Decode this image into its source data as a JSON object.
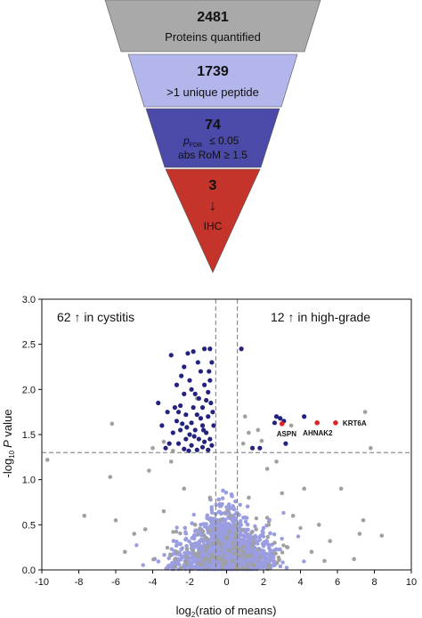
{
  "funnel": {
    "tiers": [
      {
        "count": "2481",
        "label": "Proteins quantified",
        "color": "#a9a9a9"
      },
      {
        "count": "1739",
        "label": ">1 unique peptide",
        "color": "#b3b6ea"
      },
      {
        "count": "74",
        "label_p": "p",
        "label_p_sub": "FDR",
        "label_p_rest": "≤ 0.05",
        "label_rom": "abs RoM ≥ 1.5",
        "color": "#4b4aa8"
      },
      {
        "count": "3",
        "arrow": "↓",
        "label": "IHC",
        "color": "#c4342b"
      }
    ]
  },
  "chart_data": {
    "type": "scatter",
    "xlabel_main": "log",
    "xlabel_sub": "2",
    "xlabel_rest": "(ratio of means)",
    "ylabel_main": "-log",
    "ylabel_sub": "10",
    "ylabel_p": "P",
    "ylabel_rest": " value",
    "xlim": [
      -10,
      10
    ],
    "ylim": [
      0,
      3.0
    ],
    "xticks": [
      "-10",
      "-8",
      "-6",
      "-4",
      "-2",
      "0",
      "2",
      "4",
      "6",
      "8",
      "10"
    ],
    "yticks": [
      "0.0",
      "0.5",
      "1.0",
      "1.5",
      "2.0",
      "2.5",
      "3.0"
    ],
    "threshold_y": 1.3,
    "threshold_x": [
      -0.585,
      0.585
    ],
    "annotation_left": "62 ↑ in cystitis",
    "annotation_right": "12 ↑ in high-grade",
    "colors": {
      "grey": "#a0a0a0",
      "light": "#9a9ee0",
      "dark": "#23237f",
      "red": "#d8282a"
    },
    "labeled_points": [
      {
        "name": "ASPN",
        "x": 3.0,
        "y": 1.62
      },
      {
        "name": "AHNAK2",
        "x": 4.9,
        "y": 1.63
      },
      {
        "name": "KRT6A",
        "x": 5.9,
        "y": 1.63
      }
    ],
    "significant_up_cystitis": [
      [
        -0.9,
        2.45
      ],
      [
        -1.2,
        2.45
      ],
      [
        -1.8,
        2.42
      ],
      [
        -2.1,
        2.4
      ],
      [
        -0.8,
        2.3
      ],
      [
        -1.4,
        2.2
      ],
      [
        -2.3,
        2.25
      ],
      [
        -3.0,
        2.38
      ],
      [
        -2.0,
        2.1
      ],
      [
        -1.2,
        2.05
      ],
      [
        -2.7,
        2.05
      ],
      [
        -0.9,
        2.1
      ],
      [
        -2.3,
        1.95
      ],
      [
        -1.7,
        1.95
      ],
      [
        -1.0,
        1.97
      ],
      [
        -3.7,
        1.85
      ],
      [
        -2.5,
        1.82
      ],
      [
        -1.8,
        1.8
      ],
      [
        -1.3,
        1.8
      ],
      [
        -3.2,
        1.75
      ],
      [
        -2.2,
        1.72
      ],
      [
        -1.6,
        1.72
      ],
      [
        -1.0,
        1.7
      ],
      [
        -2.7,
        1.65
      ],
      [
        -1.9,
        1.63
      ],
      [
        -1.3,
        1.6
      ],
      [
        -2.5,
        1.55
      ],
      [
        -1.7,
        1.55
      ],
      [
        -1.1,
        1.52
      ],
      [
        -2.9,
        1.52
      ],
      [
        -2.2,
        1.45
      ],
      [
        -1.5,
        1.45
      ],
      [
        -0.9,
        1.45
      ],
      [
        -2.6,
        1.4
      ],
      [
        -1.9,
        1.38
      ],
      [
        -1.3,
        1.36
      ],
      [
        -0.8,
        1.38
      ],
      [
        -3.1,
        1.4
      ],
      [
        -2.3,
        1.34
      ],
      [
        -1.6,
        1.33
      ],
      [
        -1.0,
        1.33
      ],
      [
        -2.0,
        1.5
      ],
      [
        -1.4,
        1.68
      ],
      [
        -2.8,
        1.8
      ],
      [
        -1.1,
        1.88
      ],
      [
        -1.9,
        2.0
      ],
      [
        -2.4,
        1.62
      ],
      [
        -3.5,
        1.6
      ],
      [
        -0.7,
        1.6
      ],
      [
        -1.5,
        1.9
      ],
      [
        -2.6,
        1.75
      ],
      [
        -1.2,
        1.42
      ],
      [
        -0.75,
        1.75
      ],
      [
        -2.15,
        1.58
      ],
      [
        -1.75,
        1.48
      ],
      [
        -3.3,
        1.35
      ],
      [
        -0.95,
        2.2
      ],
      [
        -1.55,
        2.3
      ],
      [
        -2.45,
        2.15
      ],
      [
        -1.25,
        1.55
      ],
      [
        -2.05,
        1.32
      ],
      [
        -0.85,
        1.85
      ]
    ],
    "significant_up_highgrade": [
      [
        2.7,
        1.7
      ],
      [
        4.2,
        1.7
      ],
      [
        3.1,
        1.65
      ],
      [
        2.6,
        1.63
      ],
      [
        3.2,
        1.4
      ],
      [
        0.8,
        2.45
      ],
      [
        1.8,
        1.35
      ],
      [
        1.4,
        1.35
      ],
      [
        2.9,
        1.68
      ]
    ],
    "nonsig_grey_above": [
      [
        -9.7,
        1.22
      ],
      [
        -6.2,
        1.62
      ],
      [
        -3.4,
        1.42
      ],
      [
        -1.6,
        1.9
      ],
      [
        1.2,
        1.52
      ],
      [
        1.7,
        1.55
      ],
      [
        3.5,
        1.6
      ],
      [
        7.5,
        1.75
      ],
      [
        7.8,
        1.35
      ],
      [
        1.0,
        1.7
      ],
      [
        -2.9,
        1.32
      ],
      [
        1.9,
        1.43
      ],
      [
        0.9,
        1.4
      ],
      [
        -4.0,
        1.35
      ]
    ],
    "nonsig_grey_below": [
      [
        -6.3,
        1.03
      ],
      [
        -4.4,
        0.45
      ],
      [
        -5.0,
        0.4
      ],
      [
        -3.0,
        1.2
      ],
      [
        -2.3,
        0.9
      ],
      [
        -1.7,
        0.5
      ],
      [
        -0.4,
        0.3
      ],
      [
        0.3,
        0.1
      ],
      [
        1.2,
        0.8
      ],
      [
        1.6,
        0.45
      ],
      [
        2.2,
        1.12
      ],
      [
        2.6,
        0.3
      ],
      [
        3.0,
        0.85
      ],
      [
        3.6,
        0.6
      ],
      [
        4.2,
        0.9
      ],
      [
        5.0,
        0.5
      ],
      [
        5.6,
        0.32
      ],
      [
        6.2,
        0.9
      ],
      [
        6.9,
        0.12
      ],
      [
        7.4,
        0.55
      ],
      [
        8.4,
        0.38
      ],
      [
        7.2,
        0.4
      ],
      [
        -7.7,
        0.6
      ],
      [
        -5.5,
        0.2
      ],
      [
        -2.7,
        0.2
      ],
      [
        -1.2,
        0.1
      ],
      [
        0.9,
        0.2
      ],
      [
        1.5,
        0.05
      ],
      [
        2.3,
        0.05
      ],
      [
        4.6,
        0.2
      ],
      [
        -3.4,
        0.65
      ],
      [
        0.2,
        0.6
      ],
      [
        -0.9,
        0.8
      ],
      [
        2.7,
        1.2
      ],
      [
        3.3,
        0.25
      ],
      [
        5.3,
        0.1
      ],
      [
        -6.0,
        0.55
      ],
      [
        -4.2,
        1.1
      ]
    ]
  }
}
